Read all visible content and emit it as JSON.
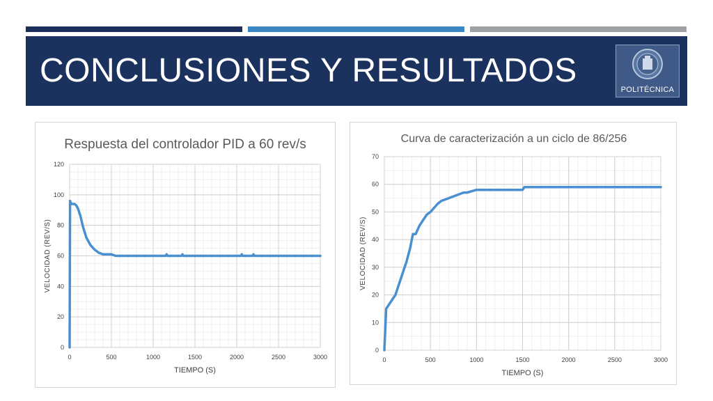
{
  "slide": {
    "title": "CONCLUSIONES Y RESULTADOS",
    "logo_text": "POLITÉCNICA",
    "colors": {
      "title_bg": "#1b325f",
      "accent_dark": "#1c2f5c",
      "accent_blue": "#3a86c2",
      "accent_gray": "#9ea2a6",
      "series": "#4a90d0"
    }
  },
  "chart_data": [
    {
      "type": "line",
      "title": "Respuesta del controlador PID a 60 rev/s",
      "xlabel": "TIEMPO (S)",
      "ylabel": "VELOCIDAD (REV/S)",
      "xlim": [
        0,
        3000
      ],
      "ylim": [
        0,
        120
      ],
      "xticks": [
        0,
        500,
        1000,
        1500,
        2000,
        2500,
        3000
      ],
      "yticks": [
        0,
        20,
        40,
        60,
        80,
        100,
        120
      ],
      "grid": true,
      "series": [
        {
          "x": [
            0,
            5,
            20,
            40,
            60,
            80,
            100,
            130,
            160,
            200,
            250,
            300,
            350,
            400,
            450,
            500,
            550,
            600,
            800,
            1000,
            1150,
            1160,
            1170,
            1300,
            1340,
            1350,
            1360,
            1600,
            2000,
            2050,
            2060,
            2070,
            2150,
            2190,
            2200,
            2210,
            2500,
            3000
          ],
          "y": [
            0,
            96,
            94,
            94,
            94,
            93,
            91,
            86,
            79,
            72,
            67,
            64,
            62,
            61,
            61,
            61,
            60,
            60,
            60,
            60,
            60,
            61,
            60,
            60,
            60,
            61,
            60,
            60,
            60,
            60,
            61,
            60,
            60,
            60,
            61,
            60,
            60,
            60
          ]
        }
      ]
    },
    {
      "type": "line",
      "title": "Curva de caracterización a un ciclo de 86/256",
      "xlabel": "TIEMPO (S)",
      "ylabel": "VELOCIDAD (REV/S)",
      "xlim": [
        0,
        3000
      ],
      "ylim": [
        0,
        70
      ],
      "xticks": [
        0,
        500,
        1000,
        1500,
        2000,
        2500,
        3000
      ],
      "yticks": [
        0,
        10,
        20,
        30,
        40,
        50,
        60,
        70
      ],
      "grid": true,
      "series": [
        {
          "x": [
            0,
            20,
            40,
            80,
            120,
            160,
            200,
            240,
            280,
            310,
            340,
            380,
            420,
            460,
            500,
            540,
            580,
            620,
            660,
            700,
            740,
            780,
            820,
            860,
            900,
            950,
            1000,
            1200,
            1500,
            1520,
            1800,
            2200,
            2600,
            3000
          ],
          "y": [
            0,
            15,
            16,
            18,
            20,
            24,
            28,
            32,
            37,
            42,
            42,
            45,
            47,
            49,
            50,
            51.5,
            53,
            54,
            54.5,
            55,
            55.5,
            56,
            56.5,
            57,
            57,
            57.5,
            58,
            58,
            58,
            59,
            59,
            59,
            59,
            59
          ]
        }
      ]
    }
  ]
}
